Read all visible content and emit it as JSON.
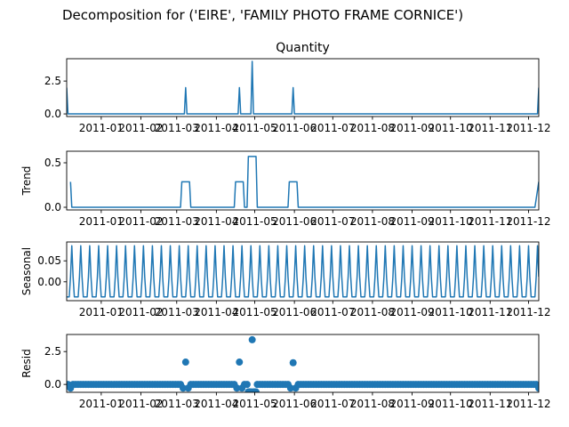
{
  "figure": {
    "suptitle": "Decomposition for ('EIRE', 'FAMILY PHOTO FRAME CORNICE')"
  },
  "chart_data": [
    {
      "type": "line",
      "title": "Quantity",
      "ylabel": "",
      "ylim": [
        -0.2,
        4.2
      ],
      "yticks": [
        0.0,
        2.5
      ],
      "ytick_labels": [
        "0.0",
        "2.5"
      ],
      "x_range": [
        "2010-12-05",
        "2011-12-09"
      ],
      "xticks": [
        "2011-01",
        "2011-02",
        "2011-03",
        "2011-04",
        "2011-05",
        "2011-06",
        "2011-07",
        "2011-08",
        "2011-09",
        "2011-10",
        "2011-11",
        "2011-12"
      ],
      "baseline": 0,
      "points": [
        {
          "x": "2010-12-05",
          "y": 2.0
        },
        {
          "x": "2011-03-08",
          "y": 2.0
        },
        {
          "x": "2011-04-19",
          "y": 2.0
        },
        {
          "x": "2011-04-29",
          "y": 4.0
        },
        {
          "x": "2011-05-31",
          "y": 2.0
        },
        {
          "x": "2011-12-09",
          "y": 2.0
        }
      ]
    },
    {
      "type": "line",
      "title": "",
      "ylabel": "Trend",
      "ylim": [
        -0.03,
        0.63
      ],
      "yticks": [
        0.0,
        0.5
      ],
      "ytick_labels": [
        "0.0",
        "0.5"
      ],
      "x_range": [
        "2010-12-05",
        "2011-12-09"
      ],
      "xticks": [
        "2011-01",
        "2011-02",
        "2011-03",
        "2011-04",
        "2011-05",
        "2011-06",
        "2011-07",
        "2011-08",
        "2011-09",
        "2011-10",
        "2011-11",
        "2011-12"
      ],
      "baseline": 0,
      "plateaus": [
        {
          "start": "2010-12-08",
          "end": "2010-12-08",
          "y": 0.286
        },
        {
          "start": "2011-03-05",
          "end": "2011-03-11",
          "y": 0.286
        },
        {
          "start": "2011-04-16",
          "end": "2011-04-22",
          "y": 0.286
        },
        {
          "start": "2011-04-26",
          "end": "2011-05-02",
          "y": 0.571
        },
        {
          "start": "2011-05-28",
          "end": "2011-06-03",
          "y": 0.286
        },
        {
          "start": "2011-12-09",
          "end": "2011-12-09",
          "y": 0.286
        }
      ]
    },
    {
      "type": "line",
      "title": "",
      "ylabel": "Seasonal",
      "ylim": [
        -0.045,
        0.095
      ],
      "yticks": [
        0.0,
        0.05
      ],
      "ytick_labels": [
        "0.00",
        "0.05"
      ],
      "x_range": [
        "2010-12-05",
        "2011-12-09"
      ],
      "xticks": [
        "2011-01",
        "2011-02",
        "2011-03",
        "2011-04",
        "2011-05",
        "2011-06",
        "2011-07",
        "2011-08",
        "2011-09",
        "2011-10",
        "2011-11",
        "2011-12"
      ],
      "period_days": 7,
      "weekly_pattern": [
        -0.036,
        -0.036,
        -0.036,
        0.012,
        0.086,
        0.012,
        -0.036
      ]
    },
    {
      "type": "scatter",
      "title": "",
      "ylabel": "Resid",
      "ylim": [
        -0.6,
        3.8
      ],
      "yticks": [
        0.0,
        2.5
      ],
      "ytick_labels": [
        "0.0",
        "2.5"
      ],
      "x_range": [
        "2010-12-05",
        "2011-12-09"
      ],
      "xticks": [
        "2011-01",
        "2011-02",
        "2011-03",
        "2011-04",
        "2011-05",
        "2011-06",
        "2011-07",
        "2011-08",
        "2011-09",
        "2011-10",
        "2011-11",
        "2011-12"
      ],
      "baseline": 0,
      "points": [
        {
          "x": "2011-03-08",
          "y": 1.7
        },
        {
          "x": "2011-04-19",
          "y": 1.7
        },
        {
          "x": "2011-04-29",
          "y": 3.4
        },
        {
          "x": "2011-05-31",
          "y": 1.65
        },
        {
          "x": "2011-03-06",
          "y": -0.28
        },
        {
          "x": "2011-03-10",
          "y": -0.28
        },
        {
          "x": "2011-04-17",
          "y": -0.28
        },
        {
          "x": "2011-04-21",
          "y": -0.28
        },
        {
          "x": "2011-04-26",
          "y": -0.57
        },
        {
          "x": "2011-04-27",
          "y": -0.57
        },
        {
          "x": "2011-04-28",
          "y": -0.57
        },
        {
          "x": "2011-04-30",
          "y": -0.57
        },
        {
          "x": "2011-05-01",
          "y": -0.57
        },
        {
          "x": "2011-05-02",
          "y": -0.57
        },
        {
          "x": "2011-05-29",
          "y": -0.28
        },
        {
          "x": "2011-06-02",
          "y": -0.28
        },
        {
          "x": "2010-12-08",
          "y": -0.28
        },
        {
          "x": "2011-12-09",
          "y": -0.28
        }
      ]
    }
  ]
}
